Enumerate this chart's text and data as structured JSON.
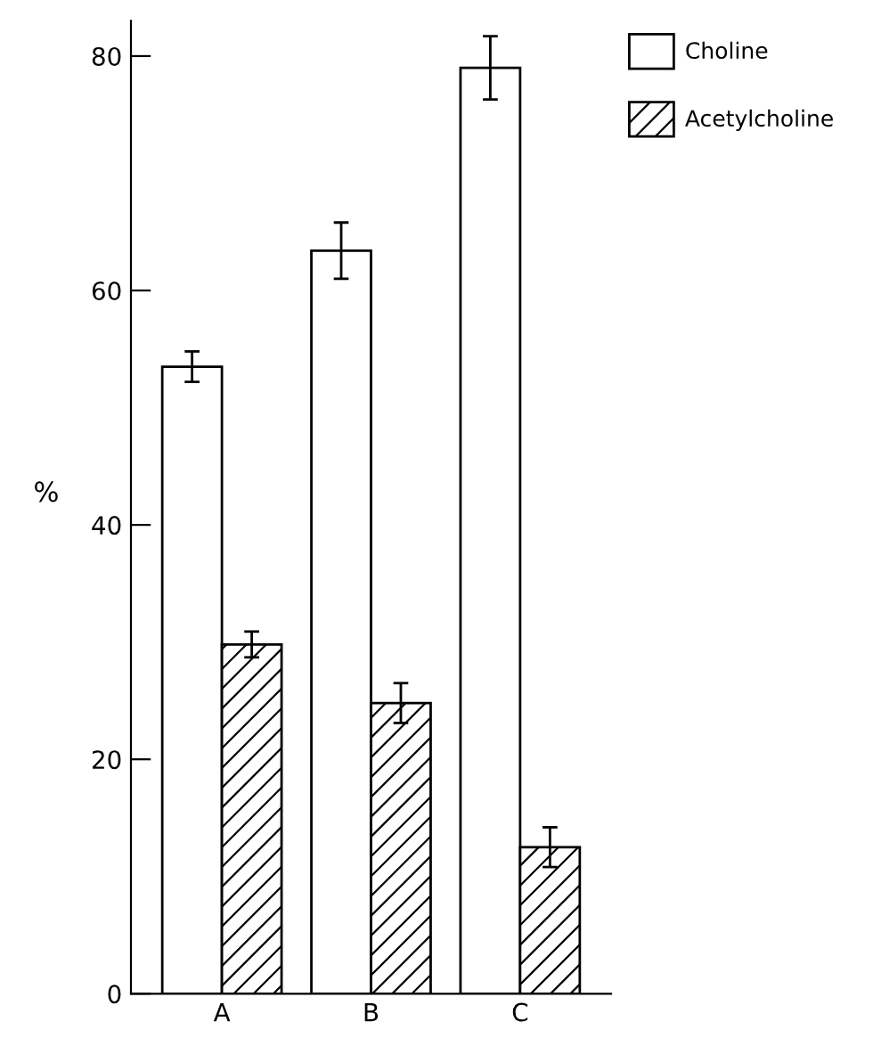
{
  "chart_data": {
    "type": "bar",
    "ylabel": "%",
    "categories": [
      "A",
      "B",
      "C"
    ],
    "series": [
      {
        "name": "Choline",
        "color": "#ffffff",
        "values": [
          53.5,
          63.4,
          79.0
        ],
        "errors": [
          1.3,
          2.4,
          2.7
        ]
      },
      {
        "name": "Acetylcholine",
        "color": "#000000",
        "values": [
          29.8,
          24.8,
          12.5
        ],
        "errors": [
          1.1,
          1.7,
          1.7
        ]
      }
    ],
    "ylim": [
      0,
      83
    ],
    "yticks": [
      0,
      20,
      40,
      60,
      80
    ],
    "grid": false,
    "legend": "top right"
  }
}
